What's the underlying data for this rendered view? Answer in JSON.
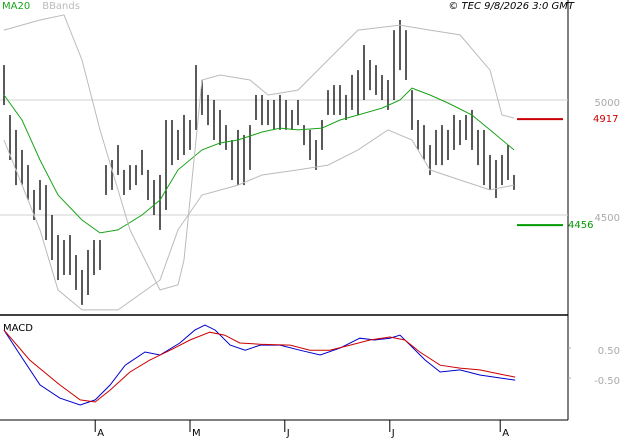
{
  "chart_data": [
    {
      "type": "ohlc",
      "credit": "© TEC 9/8/2026 3:0 GMT",
      "xlim": [
        0,
        94
      ],
      "ylim": [
        4065,
        5435
      ],
      "yticks": [
        5000,
        4500
      ],
      "grid": true,
      "bar_color": "#000000",
      "x": [
        0,
        1,
        2,
        3,
        4,
        5,
        6,
        7,
        8,
        9,
        10,
        11,
        12,
        13,
        14,
        15,
        16,
        17,
        18,
        19,
        20,
        21,
        22,
        23,
        24,
        25,
        26,
        27,
        28,
        29,
        30,
        31,
        32,
        33,
        34,
        35,
        36,
        37,
        38,
        39,
        40,
        41,
        42,
        43,
        44,
        45,
        46,
        47,
        48,
        49,
        50,
        51,
        52,
        53,
        54,
        55,
        56,
        57,
        58,
        59,
        60,
        61,
        62,
        63,
        64,
        65,
        66,
        67,
        68,
        69,
        70,
        71,
        72,
        73,
        74,
        75,
        76,
        77,
        78,
        79,
        80,
        81,
        82,
        83,
        84,
        85
      ],
      "high": [
        5152,
        4935,
        4870,
        4783,
        4717,
        4609,
        4652,
        4630,
        4500,
        4413,
        4391,
        4413,
        4326,
        4261,
        4348,
        4391,
        4391,
        4717,
        4739,
        4804,
        4696,
        4717,
        4717,
        4783,
        4696,
        4652,
        4674,
        4913,
        4913,
        4870,
        4935,
        4913,
        5152,
        5087,
        5022,
        5000,
        4957,
        4891,
        4826,
        4870,
        4848,
        4891,
        5022,
        5022,
        5000,
        5000,
        5022,
        5000,
        4957,
        5000,
        4891,
        4870,
        4826,
        4913,
        5043,
        5065,
        5065,
        5022,
        5109,
        5130,
        5239,
        5174,
        5152,
        5109,
        5087,
        5304,
        5348,
        5304,
        5043,
        4913,
        4891,
        4804,
        4870,
        4891,
        4870,
        4935,
        4913,
        4935,
        4957,
        4870,
        4870,
        4761,
        4739,
        4761,
        4804,
        4674
      ],
      "low": [
        4978,
        4739,
        4630,
        4630,
        4565,
        4478,
        4522,
        4391,
        4304,
        4217,
        4239,
        4239,
        4174,
        4109,
        4152,
        4239,
        4261,
        4587,
        4609,
        4674,
        4587,
        4609,
        4630,
        4674,
        4565,
        4500,
        4435,
        4522,
        4717,
        4739,
        4761,
        4783,
        4870,
        4935,
        4891,
        4826,
        4804,
        4783,
        4652,
        4630,
        4630,
        4696,
        4913,
        4891,
        4891,
        4870,
        4870,
        4870,
        4870,
        4891,
        4804,
        4739,
        4696,
        4783,
        4935,
        4935,
        4935,
        4913,
        4957,
        4935,
        5000,
        5043,
        5022,
        5000,
        4957,
        5000,
        5130,
        5087,
        4870,
        4783,
        4739,
        4674,
        4717,
        4717,
        4739,
        4783,
        4804,
        4826,
        4783,
        4717,
        4630,
        4609,
        4574,
        4630,
        4652,
        4609
      ],
      "overlays": [
        {
          "name": "MA20",
          "color": "#1aa31a",
          "lines": [
            {
              "x": [
                0,
                3,
                6,
                9,
                13,
                16,
                19,
                23,
                26,
                29,
                33,
                36,
                39,
                43,
                46,
                49,
                53,
                56,
                59,
                63,
                66,
                68,
                71,
                74,
                78,
                81,
                85
              ],
              "values": [
                5022,
                4913,
                4739,
                4587,
                4478,
                4422,
                4435,
                4500,
                4565,
                4696,
                4783,
                4813,
                4826,
                4861,
                4878,
                4870,
                4878,
                4913,
                4935,
                4965,
                5000,
                5052,
                5022,
                4987,
                4935,
                4870,
                4783
              ]
            }
          ]
        },
        {
          "name": "BBands",
          "color": "#bbbbbb",
          "lines": [
            {
              "x": [
                0,
                6,
                10,
                13,
                16,
                21,
                26,
                29,
                30,
                33,
                36,
                41,
                44,
                49,
                54,
                59,
                66,
                71,
                76,
                81,
                83,
                85
              ],
              "values": [
                5304,
                5348,
                5370,
                5174,
                4870,
                4435,
                4174,
                4196,
                4304,
                5087,
                5109,
                5087,
                5022,
                5043,
                5174,
                5304,
                5326,
                5304,
                5283,
                5130,
                4935,
                4922
              ]
            },
            {
              "x": [
                0,
                6,
                9,
                13,
                19,
                26,
                29,
                33,
                39,
                43,
                49,
                54,
                59,
                64,
                68,
                71,
                76,
                81,
                85
              ],
              "values": [
                4826,
                4435,
                4174,
                4087,
                4087,
                4217,
                4435,
                4587,
                4630,
                4674,
                4696,
                4717,
                4783,
                4870,
                4826,
                4696,
                4652,
                4609,
                4630
              ]
            }
          ]
        }
      ],
      "levels": [
        {
          "value": 4917,
          "color": "#cc0000"
        },
        {
          "value": 4456,
          "color": "#009900"
        }
      ]
    },
    {
      "type": "line",
      "title": "MACD",
      "xlim": [
        0,
        94
      ],
      "ylim": [
        -1.9,
        1.57
      ],
      "yticks": [
        {
          "value": 0.5,
          "label": "0.50"
        },
        {
          "value": -0.5,
          "label": "-0.50"
        }
      ],
      "xticks": [
        {
          "value": 15.2,
          "label": "A"
        },
        {
          "value": 31,
          "label": "M"
        },
        {
          "value": 46.8,
          "label": "J"
        },
        {
          "value": 64.3,
          "label": "J"
        },
        {
          "value": 82.7,
          "label": "A"
        }
      ],
      "series": [
        {
          "color": "#0000cc",
          "x": [
            0,
            2.7,
            6,
            9.3,
            12.7,
            15.2,
            17.7,
            20.2,
            23.5,
            26,
            29.3,
            31.8,
            33.5,
            35.2,
            37.7,
            40.2,
            42.7,
            46,
            49.3,
            52.7,
            56,
            59.3,
            61.8,
            64.3,
            66,
            67.7,
            70.2,
            72.7,
            76,
            79.3,
            82.7,
            85.2
          ],
          "values": [
            1.1,
            0.27,
            -0.73,
            -1.17,
            -1.4,
            -1.23,
            -0.73,
            -0.07,
            0.37,
            0.27,
            0.67,
            1.1,
            1.27,
            1.1,
            0.6,
            0.43,
            0.6,
            0.6,
            0.43,
            0.27,
            0.5,
            0.83,
            0.77,
            0.83,
            0.93,
            0.6,
            0.1,
            -0.3,
            -0.23,
            -0.4,
            -0.5,
            -0.57
          ]
        },
        {
          "color": "#cc0000",
          "x": [
            0,
            4.3,
            9.3,
            12.7,
            15.2,
            17.7,
            21,
            24.3,
            27.7,
            31,
            34.3,
            36.8,
            39.3,
            42.7,
            47.7,
            51,
            54.3,
            57.7,
            61,
            64.3,
            66.8,
            69.3,
            72.7,
            76,
            79.3,
            82.7,
            85.2
          ],
          "values": [
            1.1,
            0.1,
            -0.73,
            -1.23,
            -1.3,
            -0.9,
            -0.3,
            0.1,
            0.43,
            0.77,
            1.03,
            0.93,
            0.67,
            0.63,
            0.6,
            0.43,
            0.43,
            0.6,
            0.77,
            0.87,
            0.77,
            0.37,
            -0.07,
            -0.17,
            -0.23,
            -0.37,
            -0.47
          ]
        }
      ]
    }
  ]
}
